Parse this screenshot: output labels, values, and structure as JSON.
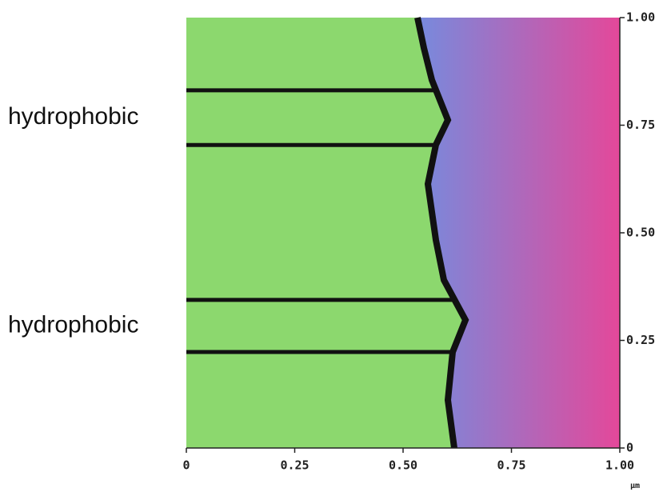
{
  "chart_data": {
    "type": "image",
    "x_unit": "μm",
    "xlim": [
      0,
      1
    ],
    "ylim": [
      0,
      1
    ],
    "xticks": [
      0,
      0.25,
      {
        "value": 0.5,
        "label": "0.50"
      },
      0.75,
      {
        "value": 1,
        "label": "1.00"
      }
    ],
    "yticks": [
      0,
      0.25,
      {
        "value": 0.5,
        "label": "0.50"
      },
      0.75,
      {
        "value": 1,
        "label": "1.00"
      }
    ],
    "regions": [
      {
        "label": "hydrophobic",
        "from": 0.704,
        "to": 0.831
      },
      {
        "label": "hydrophobic",
        "from": 0.223,
        "to": 0.344
      }
    ],
    "colors": {
      "film": "#8cd86e",
      "front": "#111111",
      "substrate_start": "#6f8fe2",
      "substrate_end": "#e4489a"
    }
  }
}
